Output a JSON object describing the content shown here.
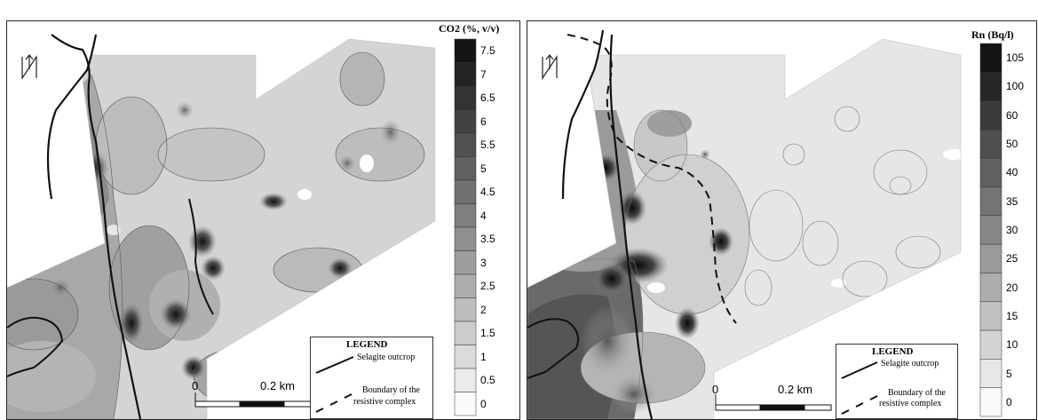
{
  "maps": [
    {
      "colorbar": {
        "title": "CO2 (%, v/v)",
        "labels": [
          "7.5",
          "7",
          "6.5",
          "6",
          "5.5",
          "5",
          "4.5",
          "4",
          "3.5",
          "3",
          "2.5",
          "2",
          "1.5",
          "1",
          "0.5",
          "0"
        ]
      },
      "legend": {
        "title": "LEGEND",
        "item1": "Selagite outcrop",
        "item2_line1": "Boundary of the",
        "item2_line2": "resistive complex"
      },
      "scale": {
        "start": "0",
        "end": "0.2 km"
      }
    },
    {
      "colorbar": {
        "title": "Rn (Bq/l)",
        "labels": [
          "105",
          "100",
          "60",
          "50",
          "40",
          "35",
          "30",
          "25",
          "20",
          "15",
          "10",
          "5",
          "0"
        ]
      },
      "legend": {
        "title": "LEGEND",
        "item1": "Selagite outcrop",
        "item2_line1": "Boundary of the",
        "item2_line2": "resistive complex"
      },
      "scale": {
        "start": "0",
        "end": "0.2 km"
      }
    }
  ]
}
